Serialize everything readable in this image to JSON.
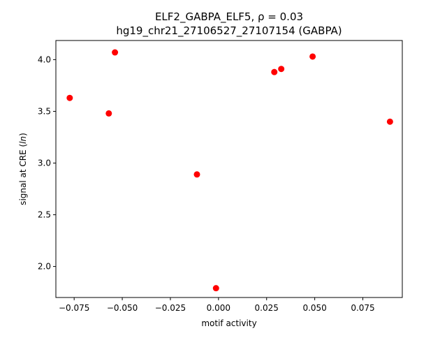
{
  "chart_data": {
    "type": "scatter",
    "title_line1": "ELF2_GABPA_ELF5, ρ = 0.03",
    "title_line2": "hg19_chr21_27106527_27107154 (GABPA)",
    "xlabel": "motif activity",
    "ylabel": "signal at CRE (ln)",
    "xlim": [
      -0.0845,
      0.0955
    ],
    "ylim": [
      1.7,
      4.185
    ],
    "xticks": [
      -0.075,
      -0.05,
      -0.025,
      0.0,
      0.025,
      0.05,
      0.075
    ],
    "xtick_labels": [
      "−0.075",
      "−0.050",
      "−0.025",
      "0.000",
      "0.025",
      "0.050",
      "0.075"
    ],
    "yticks": [
      2.0,
      2.5,
      3.0,
      3.5,
      4.0
    ],
    "ytick_labels": [
      "2.0",
      "2.5",
      "3.0",
      "3.5",
      "4.0"
    ],
    "grid": false,
    "marker_color": "#ff0000",
    "points": [
      {
        "x": -0.0773,
        "y": 3.63
      },
      {
        "x": -0.057,
        "y": 3.48
      },
      {
        "x": -0.0538,
        "y": 4.07
      },
      {
        "x": -0.0112,
        "y": 2.89
      },
      {
        "x": -0.0013,
        "y": 1.79
      },
      {
        "x": 0.029,
        "y": 3.88
      },
      {
        "x": 0.0326,
        "y": 3.91
      },
      {
        "x": 0.0489,
        "y": 4.03
      },
      {
        "x": 0.0891,
        "y": 3.4
      }
    ]
  }
}
